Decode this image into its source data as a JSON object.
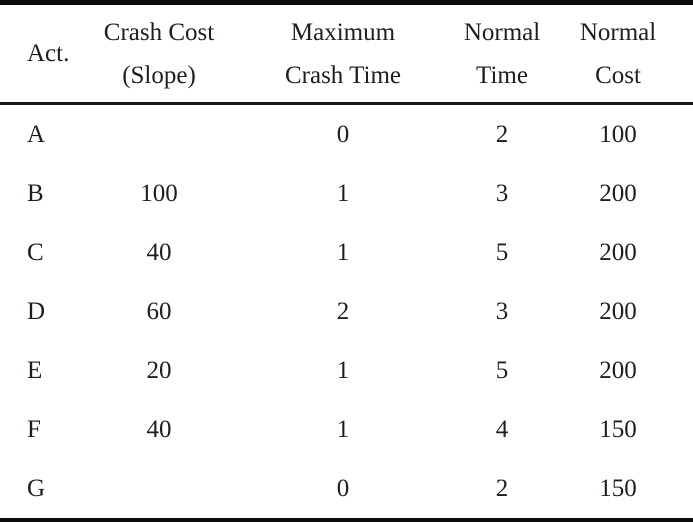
{
  "table": {
    "headers": [
      {
        "line1": "",
        "line2": "Act."
      },
      {
        "line1": "Crash Cost",
        "line2": "(Slope)"
      },
      {
        "line1": "Maximum",
        "line2": "Crash Time"
      },
      {
        "line1": "Normal",
        "line2": "Time"
      },
      {
        "line1": "Normal",
        "line2": "Cost"
      }
    ],
    "rows": [
      [
        "A",
        "",
        "0",
        "2",
        "100"
      ],
      [
        "B",
        "100",
        "1",
        "3",
        "200"
      ],
      [
        "C",
        "40",
        "1",
        "5",
        "200"
      ],
      [
        "D",
        "60",
        "2",
        "3",
        "200"
      ],
      [
        "E",
        "20",
        "1",
        "5",
        "200"
      ],
      [
        "F",
        "40",
        "1",
        "4",
        "150"
      ],
      [
        "G",
        "",
        "0",
        "2",
        "150"
      ]
    ],
    "colors": {
      "text": "#1d1d27",
      "rule": "#0c0c0c",
      "background": "#ffffff"
    }
  }
}
